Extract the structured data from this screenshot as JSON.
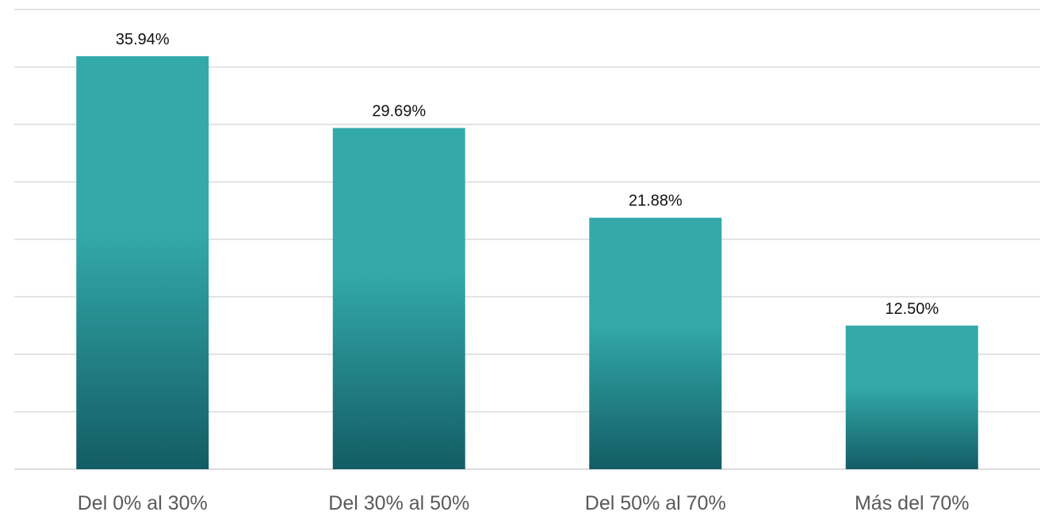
{
  "chart_data": {
    "type": "bar",
    "title": "",
    "xlabel": "",
    "ylabel": "",
    "categories": [
      "Del 0% al 30%",
      "Del 30% al 50%",
      "Del 50% al 70%",
      "Más del 70%"
    ],
    "values": [
      35.94,
      29.69,
      21.88,
      12.5
    ],
    "data_labels": [
      "35.94%",
      "29.69%",
      "21.88%",
      "12.50%"
    ],
    "ylim": [
      0,
      40
    ],
    "grid_step": 5,
    "y_axis_labels_visible": false,
    "grid": true,
    "legend": "none",
    "colors": {
      "bar_top": "#33aaa9",
      "bar_bottom": "#135c65",
      "grid": "#d9d9d9",
      "data_label": "#111111",
      "category_label": "#595959"
    }
  }
}
